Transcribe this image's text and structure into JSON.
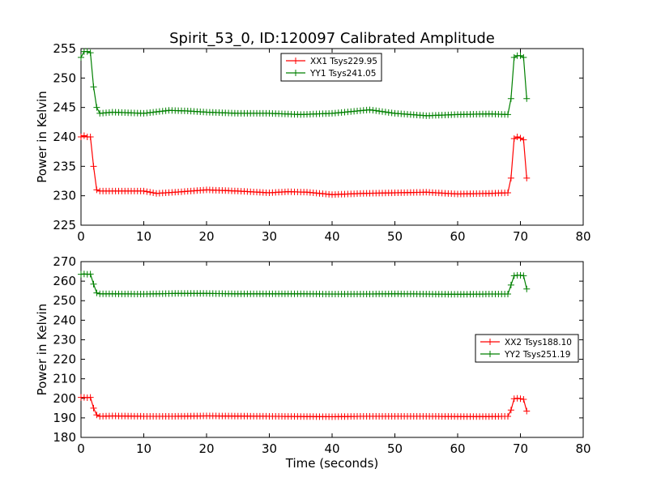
{
  "figure_title": "Spirit_53_0, ID:120097 Calibrated Amplitude",
  "colors": {
    "xx": "#ff0000",
    "yy": "#008000",
    "axis": "#000000",
    "background": "#ffffff"
  },
  "chart_data": [
    {
      "type": "line",
      "title": "Spirit_53_0, ID:120097 Calibrated Amplitude",
      "xlabel": "",
      "ylabel": "Power in Kelvin",
      "xlim": [
        0,
        80
      ],
      "ylim": [
        225,
        255
      ],
      "xticks": [
        "0",
        "10",
        "20",
        "30",
        "40",
        "50",
        "60",
        "70",
        "80"
      ],
      "yticks": [
        "225",
        "230",
        "235",
        "240",
        "245",
        "250",
        "255"
      ],
      "grid": false,
      "legend": "top-center",
      "marker": "plus",
      "series": [
        {
          "name": "XX1 Tsys229.95",
          "color": "#ff0000",
          "x": [
            0,
            0.5,
            1,
            1.5,
            2,
            2.5,
            3,
            5,
            10,
            12,
            15,
            20,
            25,
            30,
            33,
            36,
            40,
            45,
            50,
            55,
            60,
            65,
            68,
            68.5,
            69,
            69.5,
            70,
            70.5,
            71
          ],
          "y": [
            240,
            240.2,
            240,
            240,
            235,
            231,
            230.8,
            230.8,
            230.8,
            230.4,
            230.6,
            231,
            230.8,
            230.5,
            230.7,
            230.6,
            230.2,
            230.4,
            230.5,
            230.6,
            230.3,
            230.4,
            230.5,
            233,
            239.7,
            240,
            239.8,
            239.5,
            233
          ]
        },
        {
          "name": "YY1 Tsys241.05",
          "color": "#008000",
          "x": [
            0,
            0.5,
            1,
            1.5,
            2,
            2.5,
            3,
            5,
            10,
            14,
            17,
            20,
            25,
            30,
            35,
            40,
            46,
            50,
            55,
            60,
            65,
            68,
            68.5,
            69,
            69.5,
            70,
            70.5,
            71
          ],
          "y": [
            253.5,
            254.5,
            254.5,
            254.3,
            248.5,
            245,
            244,
            244.2,
            244,
            244.5,
            244.4,
            244.2,
            244,
            244,
            243.8,
            244,
            244.6,
            244,
            243.6,
            243.8,
            243.9,
            243.8,
            246.5,
            253.5,
            253.8,
            253.8,
            253.5,
            246.5
          ]
        }
      ]
    },
    {
      "type": "line",
      "title": "",
      "xlabel": "Time (seconds)",
      "ylabel": "Power in Kelvin",
      "xlim": [
        0,
        80
      ],
      "ylim": [
        180,
        270
      ],
      "xticks": [
        "0",
        "10",
        "20",
        "30",
        "40",
        "50",
        "60",
        "70",
        "80"
      ],
      "yticks": [
        "180",
        "190",
        "200",
        "210",
        "220",
        "230",
        "240",
        "250",
        "260",
        "270"
      ],
      "grid": false,
      "legend": "center-right",
      "marker": "plus",
      "series": [
        {
          "name": "XX2 Tsys188.10",
          "color": "#ff0000",
          "x": [
            0,
            0.5,
            1,
            1.5,
            2,
            2.5,
            3,
            5,
            10,
            15,
            20,
            25,
            30,
            35,
            40,
            45,
            50,
            55,
            60,
            65,
            68,
            68.5,
            69,
            69.5,
            70,
            70.5,
            71
          ],
          "y": [
            200.5,
            200.5,
            200.3,
            200.5,
            195,
            191.5,
            190.8,
            191,
            190.8,
            190.8,
            191,
            190.9,
            190.8,
            190.7,
            190.6,
            190.8,
            190.8,
            190.8,
            190.7,
            190.7,
            190.8,
            194,
            199.8,
            200,
            199.8,
            199.5,
            193.5
          ]
        },
        {
          "name": "YY2 Tsys251.19",
          "color": "#008000",
          "x": [
            0,
            0.5,
            1,
            1.5,
            2,
            2.5,
            3,
            5,
            10,
            15,
            20,
            25,
            30,
            35,
            40,
            45,
            50,
            55,
            60,
            65,
            68,
            68.5,
            69,
            69.5,
            70,
            70.5,
            71
          ],
          "y": [
            263.5,
            263.7,
            263.5,
            263.6,
            258.5,
            254,
            253.5,
            253.5,
            253.4,
            253.7,
            253.7,
            253.5,
            253.5,
            253.5,
            253.4,
            253.4,
            253.5,
            253.4,
            253.3,
            253.4,
            253.4,
            258,
            262.8,
            263,
            263,
            262.8,
            256
          ]
        }
      ]
    }
  ]
}
